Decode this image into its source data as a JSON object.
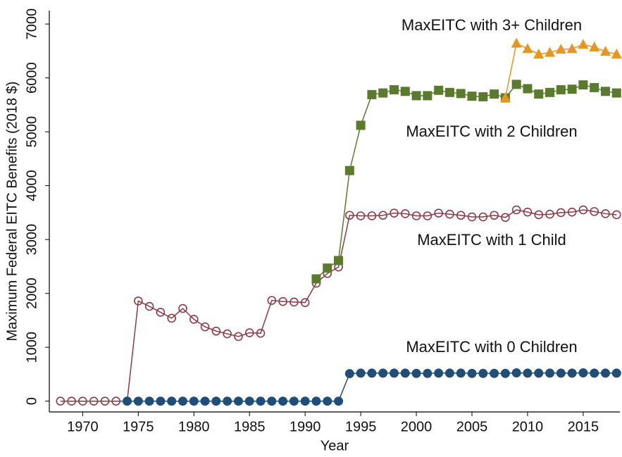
{
  "chart_data": {
    "type": "line",
    "x_label": "Year",
    "y_label": "Maximum Federal EITC Benefits (2018 $)",
    "x": [
      1968,
      1969,
      1970,
      1971,
      1972,
      1973,
      1974,
      1975,
      1976,
      1977,
      1978,
      1979,
      1980,
      1981,
      1982,
      1983,
      1984,
      1985,
      1986,
      1987,
      1988,
      1989,
      1990,
      1991,
      1992,
      1993,
      1994,
      1995,
      1996,
      1997,
      1998,
      1999,
      2000,
      2001,
      2002,
      2003,
      2004,
      2005,
      2006,
      2007,
      2008,
      2009,
      2010,
      2011,
      2012,
      2013,
      2014,
      2015,
      2016,
      2017,
      2018
    ],
    "series": [
      {
        "color": "#8b3a48",
        "marker": "circle-open",
        "values": [
          0,
          0,
          0,
          0,
          0,
          0,
          0,
          1860,
          1760,
          1650,
          1540,
          1720,
          1520,
          1380,
          1300,
          1250,
          1200,
          1270,
          1260,
          1870,
          1850,
          1840,
          1830,
          2190,
          2370,
          2490,
          3450,
          3440,
          3440,
          3450,
          3490,
          3480,
          3440,
          3440,
          3490,
          3470,
          3450,
          3420,
          3420,
          3450,
          3410,
          3550,
          3510,
          3460,
          3470,
          3500,
          3510,
          3550,
          3520,
          3480,
          3460
        ]
      },
      {
        "color": "#1f4e79",
        "marker": "circle",
        "values": [
          null,
          null,
          null,
          null,
          null,
          null,
          0,
          0,
          0,
          0,
          0,
          0,
          0,
          0,
          0,
          0,
          0,
          0,
          0,
          0,
          0,
          0,
          0,
          0,
          0,
          0,
          510,
          520,
          520,
          520,
          520,
          520,
          515,
          515,
          520,
          520,
          520,
          515,
          515,
          515,
          515,
          525,
          520,
          520,
          520,
          520,
          520,
          525,
          520,
          520,
          520
        ]
      },
      {
        "color": "#5a7a2e",
        "marker": "square",
        "values": [
          null,
          null,
          null,
          null,
          null,
          null,
          null,
          null,
          null,
          null,
          null,
          null,
          null,
          null,
          null,
          null,
          null,
          null,
          null,
          null,
          null,
          null,
          null,
          2270,
          2470,
          2610,
          4280,
          5120,
          5690,
          5720,
          5780,
          5750,
          5670,
          5670,
          5770,
          5730,
          5710,
          5660,
          5650,
          5700,
          5630,
          5880,
          5800,
          5700,
          5730,
          5780,
          5790,
          5870,
          5820,
          5750,
          5720
        ]
      },
      {
        "color": "#e8961e",
        "marker": "triangle",
        "values": [
          null,
          null,
          null,
          null,
          null,
          null,
          null,
          null,
          null,
          null,
          null,
          null,
          null,
          null,
          null,
          null,
          null,
          null,
          null,
          null,
          null,
          null,
          null,
          null,
          null,
          null,
          null,
          null,
          null,
          null,
          null,
          null,
          null,
          null,
          null,
          null,
          null,
          null,
          null,
          null,
          5630,
          6640,
          6540,
          6440,
          6470,
          6530,
          6540,
          6620,
          6570,
          6490,
          6440
        ]
      }
    ],
    "annotations": [
      "MaxEITC with 3+ Children",
      "MaxEITC with 2 Children",
      "MaxEITC with 1 Child",
      "MaxEITC with 0 Children"
    ],
    "xlim": [
      1967,
      2018.3
    ],
    "ylim": [
      -200,
      7250
    ],
    "xticks": [
      1970,
      1975,
      1980,
      1985,
      1990,
      1995,
      2000,
      2005,
      2010,
      2015
    ],
    "yticks": [
      0,
      1000,
      2000,
      3000,
      4000,
      5000,
      6000,
      7000
    ],
    "grid": false
  }
}
